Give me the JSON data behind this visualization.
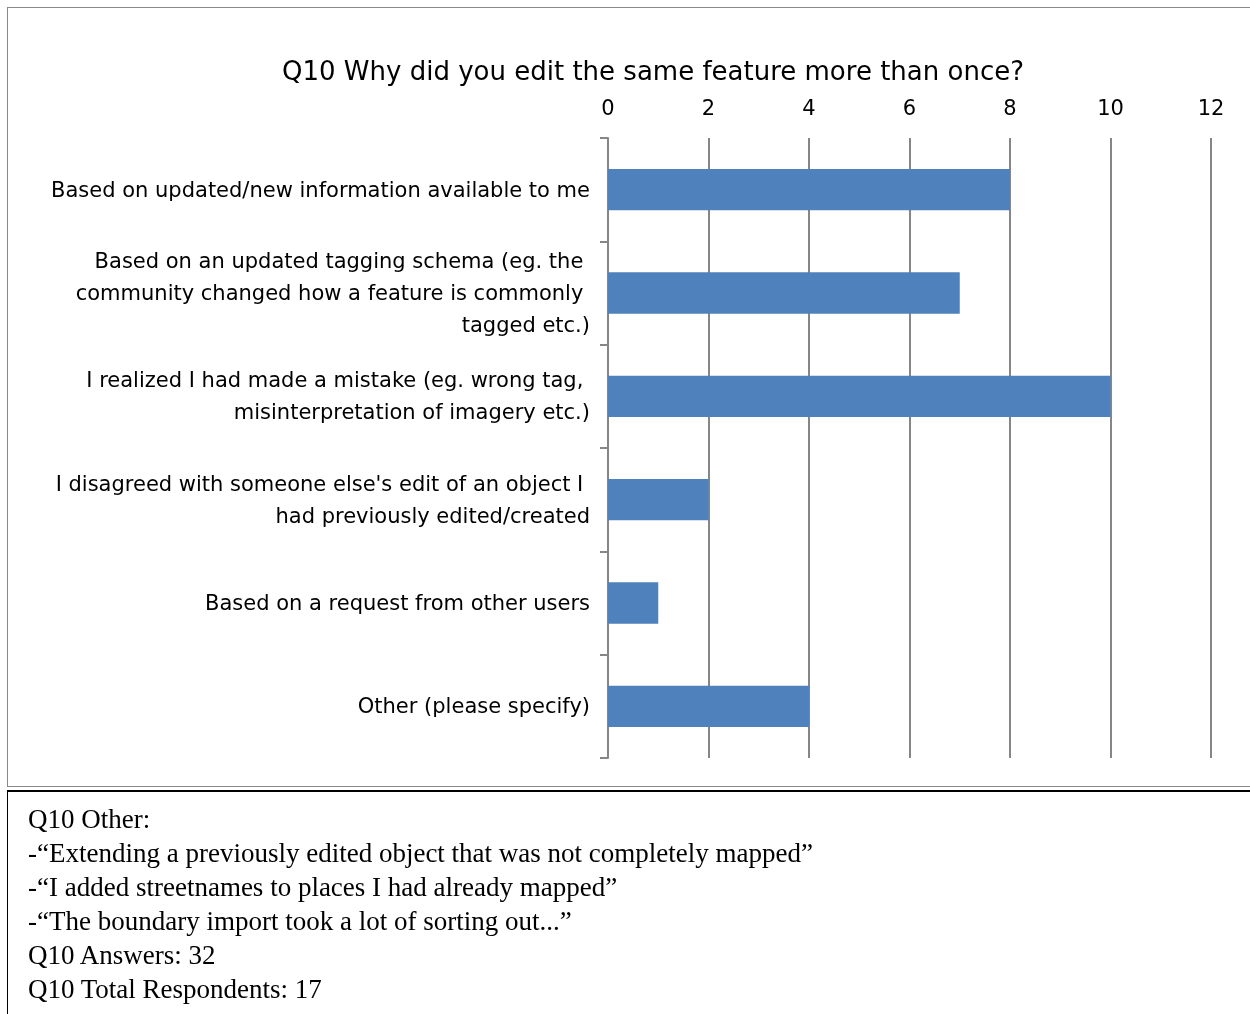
{
  "chart_data": {
    "type": "bar",
    "orientation": "horizontal",
    "title": "Q10 Why did you edit the same feature more than once?",
    "categories": [
      "Based on updated/new information available to me",
      "Based on an updated tagging schema (eg. the community changed how a feature is commonly tagged etc.)",
      "I realized I had made a mistake (eg. wrong tag, misinterpretation of imagery etc.)",
      "I disagreed with someone else's edit of an object I had previously edited/created",
      "Based on a request from other users",
      "Other (please specify)"
    ],
    "values": [
      8,
      7,
      10,
      2,
      1,
      4
    ],
    "color": "#4f81bd",
    "xlim": [
      0,
      12
    ],
    "xticks": [
      0,
      2,
      4,
      6,
      8,
      10,
      12
    ],
    "grid": "x",
    "annotations": [
      "Q10 Other:",
      "-“Extending a previously edited object that was not completely mapped”",
      "-“I added streetnames to places I had already mapped”",
      "-“The boundary import took a lot of sorting out...”",
      "Q10 Answers: 32",
      "Q10 Total Respondents: 17"
    ]
  }
}
